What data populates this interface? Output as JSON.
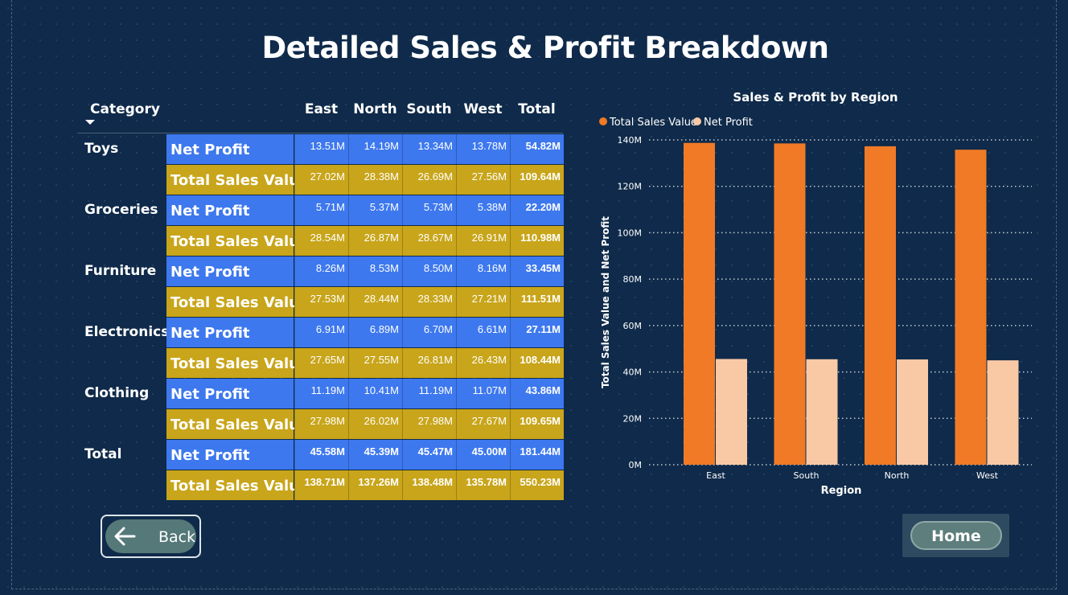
{
  "page": {
    "title": "Detailed Sales & Profit Breakdown"
  },
  "matrix": {
    "category_header": "Category",
    "columns": [
      "East",
      "North",
      "South",
      "West",
      "Total"
    ],
    "rows": [
      {
        "category": "Toys",
        "metric": "Net Profit",
        "values": [
          "13.51M",
          "14.19M",
          "13.34M",
          "13.78M",
          "54.82M"
        ],
        "type": "np"
      },
      {
        "category": "",
        "metric": "Total Sales Value",
        "values": [
          "27.02M",
          "28.38M",
          "26.69M",
          "27.56M",
          "109.64M"
        ],
        "type": "ts"
      },
      {
        "category": "Groceries",
        "metric": "Net Profit",
        "values": [
          "5.71M",
          "5.37M",
          "5.73M",
          "5.38M",
          "22.20M"
        ],
        "type": "np"
      },
      {
        "category": "",
        "metric": "Total Sales Value",
        "values": [
          "28.54M",
          "26.87M",
          "28.67M",
          "26.91M",
          "110.98M"
        ],
        "type": "ts"
      },
      {
        "category": "Furniture",
        "metric": "Net Profit",
        "values": [
          "8.26M",
          "8.53M",
          "8.50M",
          "8.16M",
          "33.45M"
        ],
        "type": "np"
      },
      {
        "category": "",
        "metric": "Total Sales Value",
        "values": [
          "27.53M",
          "28.44M",
          "28.33M",
          "27.21M",
          "111.51M"
        ],
        "type": "ts"
      },
      {
        "category": "Electronics",
        "metric": "Net Profit",
        "values": [
          "6.91M",
          "6.89M",
          "6.70M",
          "6.61M",
          "27.11M"
        ],
        "type": "np"
      },
      {
        "category": "",
        "metric": "Total Sales Value",
        "values": [
          "27.65M",
          "27.55M",
          "26.81M",
          "26.43M",
          "108.44M"
        ],
        "type": "ts"
      },
      {
        "category": "Clothing",
        "metric": "Net Profit",
        "values": [
          "11.19M",
          "10.41M",
          "11.19M",
          "11.07M",
          "43.86M"
        ],
        "type": "np"
      },
      {
        "category": "",
        "metric": "Total Sales Value",
        "values": [
          "27.98M",
          "26.02M",
          "27.98M",
          "27.67M",
          "109.65M"
        ],
        "type": "ts"
      },
      {
        "category": "Total",
        "metric": "Net Profit",
        "values": [
          "45.58M",
          "45.39M",
          "45.47M",
          "45.00M",
          "181.44M"
        ],
        "type": "np",
        "total": true
      },
      {
        "category": "",
        "metric": "Total Sales Value",
        "values": [
          "138.71M",
          "137.26M",
          "138.48M",
          "135.78M",
          "550.23M"
        ],
        "type": "ts",
        "total": true
      }
    ]
  },
  "chart_data": {
    "type": "bar",
    "title": "Sales & Profit by Region",
    "xlabel": "Region",
    "ylabel": "Total Sales Value and Net Profit",
    "categories": [
      "East",
      "South",
      "North",
      "West"
    ],
    "series": [
      {
        "name": "Total Sales Value",
        "values": [
          138.71,
          138.48,
          137.26,
          135.78
        ],
        "color": "#f07a26"
      },
      {
        "name": "Net Profit",
        "values": [
          45.58,
          45.47,
          45.39,
          45.0
        ],
        "color": "#f9c9a5"
      }
    ],
    "y_unit": "M",
    "ylim": [
      0,
      140
    ],
    "yticks": [
      0,
      20,
      40,
      60,
      80,
      100,
      120,
      140
    ],
    "ytick_labels": [
      "0M",
      "20M",
      "40M",
      "60M",
      "80M",
      "100M",
      "120M",
      "140M"
    ],
    "grid": true,
    "legend_position": "top-left"
  },
  "buttons": {
    "back_label": "Back",
    "home_label": "Home"
  },
  "icons": {
    "back": "left-arrow-icon",
    "sort": "sort-descending-icon"
  },
  "colors": {
    "background": "#0f2a4a",
    "net_profit_row": "#3d78ee",
    "sales_row": "#c8a51a",
    "sales_bar": "#f07a26",
    "profit_bar": "#f9c9a5"
  }
}
